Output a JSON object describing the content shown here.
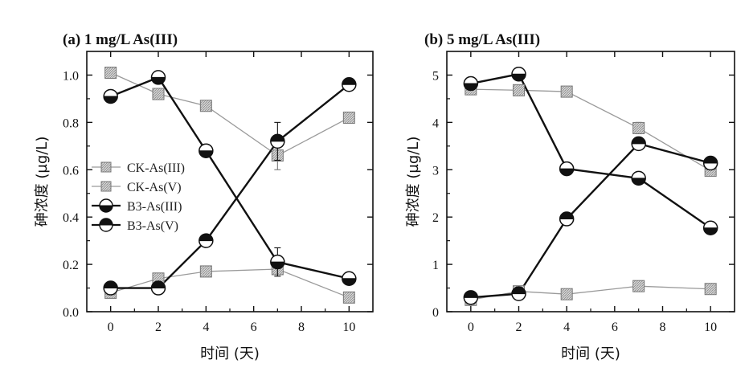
{
  "chart_data": [
    {
      "type": "line",
      "title": "(a) 1 mg/L As(III)",
      "xlabel": "时间 (天)",
      "ylabel": "砷浓度 (µg/L)",
      "xlim": [
        -1,
        11
      ],
      "ylim": [
        0,
        1.1
      ],
      "x_ticks": [
        "0",
        "2",
        "4",
        "6",
        "8",
        "10"
      ],
      "y_ticks": [
        "0.0",
        "0.2",
        "0.4",
        "0.6",
        "0.8",
        "1.0"
      ],
      "legend": "left-middle",
      "series": [
        {
          "name": "CK-As(III)",
          "style": "ck",
          "x": [
            0,
            2,
            4,
            7,
            10
          ],
          "values": [
            1.01,
            0.92,
            0.87,
            0.66,
            0.82
          ],
          "err": [
            0.01,
            0.02,
            0.01,
            0.06,
            0.01
          ]
        },
        {
          "name": "CK-As(V)",
          "style": "ck",
          "x": [
            0,
            2,
            4,
            7,
            10
          ],
          "values": [
            0.08,
            0.14,
            0.17,
            0.18,
            0.06
          ],
          "err": [
            0.01,
            0.01,
            0.01,
            0.02,
            0.01
          ]
        },
        {
          "name": "B3-As(III)",
          "style": "b3-iii",
          "x": [
            0,
            2,
            4,
            7,
            10
          ],
          "values": [
            0.91,
            0.99,
            0.68,
            0.21,
            0.14
          ],
          "err": [
            0.01,
            0.01,
            0.01,
            0.06,
            0.01
          ]
        },
        {
          "name": "B3-As(V)",
          "style": "b3-v",
          "x": [
            0,
            2,
            4,
            7,
            10
          ],
          "values": [
            0.1,
            0.1,
            0.3,
            0.72,
            0.96
          ],
          "err": [
            0.01,
            0.01,
            0.01,
            0.08,
            0.01
          ]
        }
      ]
    },
    {
      "type": "line",
      "title": "(b) 5 mg/L As(III)",
      "xlabel": "时间 (天)",
      "ylabel": "砷浓度 (µg/L)",
      "xlim": [
        -1,
        11
      ],
      "ylim": [
        0,
        5.5
      ],
      "x_ticks": [
        "0",
        "2",
        "4",
        "6",
        "8",
        "10"
      ],
      "y_ticks": [
        "0",
        "1",
        "2",
        "3",
        "4",
        "5"
      ],
      "series": [
        {
          "name": "CK-As(III)",
          "style": "ck",
          "x": [
            0,
            2,
            4,
            7,
            10
          ],
          "values": [
            4.7,
            4.68,
            4.65,
            3.88,
            2.98
          ],
          "err": [
            0.05,
            0.05,
            0.05,
            0.12,
            0.08
          ]
        },
        {
          "name": "CK-As(V)",
          "style": "ck",
          "x": [
            0,
            2,
            4,
            7,
            10
          ],
          "values": [
            0.25,
            0.43,
            0.37,
            0.54,
            0.48
          ],
          "err": [
            0.03,
            0.03,
            0.03,
            0.05,
            0.03
          ]
        },
        {
          "name": "B3-As(III)",
          "style": "b3-iii",
          "x": [
            0,
            2,
            4,
            7,
            10
          ],
          "values": [
            4.82,
            5.02,
            3.02,
            2.82,
            1.77
          ],
          "err": [
            0.05,
            0.05,
            0.05,
            0.05,
            0.05
          ]
        },
        {
          "name": "B3-As(V)",
          "style": "b3-v",
          "x": [
            0,
            2,
            4,
            7,
            10
          ],
          "values": [
            0.3,
            0.38,
            1.96,
            3.55,
            3.14
          ],
          "err": [
            0.03,
            0.03,
            0.05,
            0.05,
            0.05
          ]
        }
      ]
    }
  ]
}
